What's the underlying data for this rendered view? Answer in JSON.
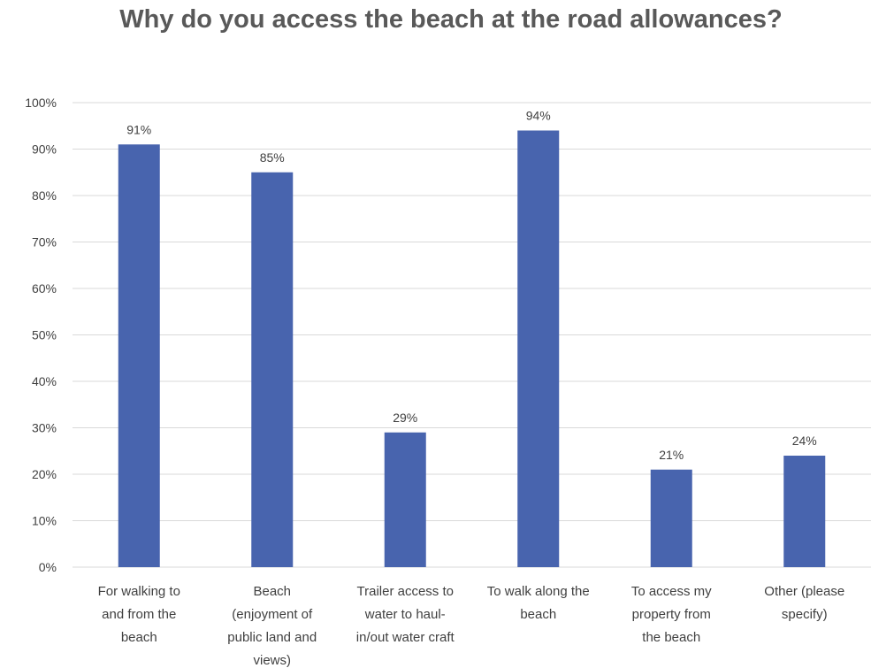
{
  "chart_data": {
    "type": "bar",
    "title": "Why do you access the beach at the road allowances?",
    "categories": [
      "For walking to and from the beach",
      "Beach (enjoyment of public land and views)",
      "Trailer access to water to haul-in/out water craft",
      "To walk along the beach",
      "To access my property from the beach",
      "Other (please specify)"
    ],
    "category_lines": [
      [
        "For walking to",
        "and from the",
        "beach"
      ],
      [
        "Beach",
        "(enjoyment of",
        "public land and",
        "views)"
      ],
      [
        "Trailer access to",
        "water to haul-",
        "in/out water craft"
      ],
      [
        "To walk along the",
        "beach"
      ],
      [
        "To access my",
        "property from",
        "the beach"
      ],
      [
        "Other (please",
        "specify)"
      ]
    ],
    "values": [
      0.91,
      0.85,
      0.29,
      0.94,
      0.21,
      0.24
    ],
    "data_labels": [
      "91%",
      "85%",
      "29%",
      "94%",
      "21%",
      "24%"
    ],
    "y_ticks": [
      "0%",
      "10%",
      "20%",
      "30%",
      "40%",
      "50%",
      "60%",
      "70%",
      "80%",
      "90%",
      "100%"
    ],
    "ylim": [
      0,
      1
    ],
    "grid": true,
    "legend": "none",
    "bar_color": "#4864AE",
    "grid_color": "#D9D9D9",
    "text_color": "#404040",
    "title_color": "#595959"
  }
}
